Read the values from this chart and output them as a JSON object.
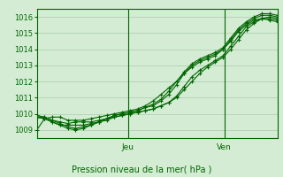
{
  "title": "Pression niveau de la mer( hPa )",
  "background_color": "#d4ecd4",
  "grid_color": "#aaccaa",
  "line_color": "#006600",
  "ylim": [
    1008.5,
    1016.5
  ],
  "ylabel_ticks": [
    1009,
    1010,
    1011,
    1012,
    1013,
    1014,
    1015,
    1016
  ],
  "x_day_labels": [
    [
      "Jeu",
      0.38
    ],
    [
      "Ven",
      0.78
    ]
  ],
  "series": [
    [
      1009.0,
      1009.7,
      1009.8,
      1009.8,
      1009.6,
      1009.6,
      1009.6,
      1009.7,
      1009.8,
      1009.9,
      1010.0,
      1010.1,
      1010.2,
      1010.3,
      1010.5,
      1010.8,
      1011.2,
      1011.6,
      1012.0,
      1012.5,
      1012.9,
      1013.2,
      1013.4,
      1013.6,
      1014.0,
      1014.5,
      1015.1,
      1015.5,
      1015.8,
      1015.9,
      1015.8,
      1015.7
    ],
    [
      1009.8,
      1009.8,
      1009.6,
      1009.5,
      1009.4,
      1009.5,
      1009.5,
      1009.5,
      1009.6,
      1009.7,
      1009.8,
      1009.9,
      1010.0,
      1010.1,
      1010.2,
      1010.3,
      1010.5,
      1010.7,
      1011.0,
      1011.5,
      1012.0,
      1012.5,
      1012.9,
      1013.2,
      1013.5,
      1014.0,
      1014.6,
      1015.2,
      1015.6,
      1015.9,
      1015.9,
      1015.8
    ],
    [
      1009.8,
      1009.7,
      1009.5,
      1009.3,
      1009.3,
      1009.3,
      1009.3,
      1009.4,
      1009.5,
      1009.6,
      1009.8,
      1009.9,
      1010.0,
      1010.1,
      1010.2,
      1010.3,
      1010.5,
      1010.7,
      1011.1,
      1011.7,
      1012.3,
      1012.7,
      1013.0,
      1013.3,
      1013.6,
      1014.2,
      1014.8,
      1015.4,
      1015.7,
      1015.9,
      1016.0,
      1015.9
    ],
    [
      1009.9,
      1009.8,
      1009.6,
      1009.4,
      1009.2,
      1009.1,
      1009.2,
      1009.3,
      1009.5,
      1009.7,
      1009.9,
      1010.0,
      1010.1,
      1010.2,
      1010.4,
      1010.5,
      1010.8,
      1011.2,
      1011.8,
      1012.5,
      1013.0,
      1013.3,
      1013.5,
      1013.7,
      1014.0,
      1014.6,
      1015.2,
      1015.6,
      1015.9,
      1016.1,
      1016.1,
      1016.0
    ],
    [
      1009.8,
      1009.7,
      1009.5,
      1009.3,
      1009.1,
      1009.0,
      1009.1,
      1009.3,
      1009.5,
      1009.7,
      1009.9,
      1010.0,
      1010.1,
      1010.2,
      1010.4,
      1010.6,
      1010.9,
      1011.4,
      1012.0,
      1012.6,
      1013.1,
      1013.4,
      1013.6,
      1013.8,
      1014.1,
      1014.7,
      1015.3,
      1015.7,
      1016.0,
      1016.2,
      1016.2,
      1016.1
    ]
  ],
  "marker": "+"
}
